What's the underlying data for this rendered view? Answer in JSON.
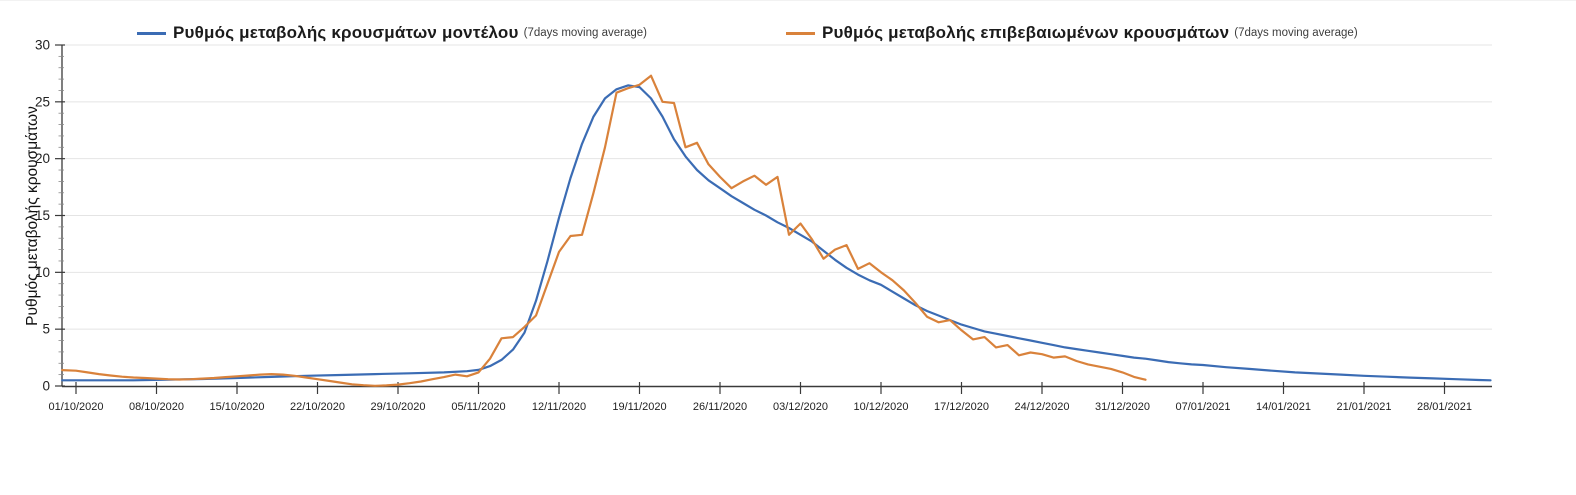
{
  "colors": {
    "model_line": "#3b6cb4",
    "confirmed_line": "#d9823b",
    "grid": "#e4e4e4",
    "axis": "#3a3a3a",
    "tick_label": "#1f1f1f"
  },
  "legend": {
    "entries": [
      {
        "label": "Ρυθμός μεταβολής κρουσμάτων μοντέλου",
        "sub": "(7days moving average)",
        "color": "#3b6cb4"
      },
      {
        "label": "Ρυθμός μεταβολής επιβεβαιωμένων κρουσμάτων",
        "sub": "(7days moving average)",
        "color": "#d9823b"
      }
    ]
  },
  "chart_data": {
    "type": "line",
    "title": "",
    "xlabel": "",
    "ylabel": "Ρυθμός μεταβολής κρουσμάτων",
    "ylim": [
      0,
      30
    ],
    "yticks": [
      0,
      5,
      10,
      15,
      20,
      25,
      30
    ],
    "y_minor_step": 1,
    "grid": true,
    "legend_position": "top",
    "x_tick_labels": [
      "01/10/2020",
      "08/10/2020",
      "15/10/2020",
      "22/10/2020",
      "29/10/2020",
      "05/11/2020",
      "12/11/2020",
      "19/11/2020",
      "26/11/2020",
      "03/12/2020",
      "10/12/2020",
      "17/12/2020",
      "24/12/2020",
      "31/12/2020",
      "07/01/2021",
      "14/01/2021",
      "21/01/2021",
      "28/01/2021"
    ],
    "x_tick_days": [
      0,
      7,
      14,
      21,
      28,
      35,
      42,
      49,
      56,
      63,
      70,
      77,
      84,
      91,
      98,
      105,
      112,
      119
    ],
    "x_domain_days": [
      -1.2,
      123
    ],
    "series": [
      {
        "name": "Ρυθμός μεταβολής κρουσμάτων μοντέλου (7days moving average)",
        "color": "#3b6cb4",
        "points": [
          [
            -1.2,
            0.5
          ],
          [
            2,
            0.5
          ],
          [
            5,
            0.5
          ],
          [
            8,
            0.55
          ],
          [
            11,
            0.62
          ],
          [
            14,
            0.7
          ],
          [
            17,
            0.8
          ],
          [
            20,
            0.9
          ],
          [
            23,
            0.97
          ],
          [
            26,
            1.05
          ],
          [
            29,
            1.12
          ],
          [
            32,
            1.2
          ],
          [
            34,
            1.3
          ],
          [
            35,
            1.42
          ],
          [
            36,
            1.75
          ],
          [
            37,
            2.3
          ],
          [
            38,
            3.2
          ],
          [
            39,
            4.7
          ],
          [
            40,
            7.5
          ],
          [
            41,
            11.0
          ],
          [
            42,
            14.8
          ],
          [
            43,
            18.3
          ],
          [
            44,
            21.3
          ],
          [
            45,
            23.7
          ],
          [
            46,
            25.3
          ],
          [
            47,
            26.1
          ],
          [
            48,
            26.45
          ],
          [
            49,
            26.3
          ],
          [
            50,
            25.3
          ],
          [
            51,
            23.7
          ],
          [
            52,
            21.7
          ],
          [
            53,
            20.2
          ],
          [
            54,
            19.0
          ],
          [
            55,
            18.1
          ],
          [
            56,
            17.4
          ],
          [
            57,
            16.7
          ],
          [
            58,
            16.1
          ],
          [
            59,
            15.5
          ],
          [
            60,
            15.0
          ],
          [
            61,
            14.4
          ],
          [
            62,
            13.9
          ],
          [
            63,
            13.3
          ],
          [
            64,
            12.7
          ],
          [
            65,
            11.9
          ],
          [
            66,
            11.1
          ],
          [
            67,
            10.4
          ],
          [
            68,
            9.8
          ],
          [
            69,
            9.3
          ],
          [
            70,
            8.9
          ],
          [
            71,
            8.3
          ],
          [
            72,
            7.7
          ],
          [
            73,
            7.1
          ],
          [
            74,
            6.6
          ],
          [
            75,
            6.2
          ],
          [
            76,
            5.8
          ],
          [
            77,
            5.4
          ],
          [
            78,
            5.1
          ],
          [
            79,
            4.8
          ],
          [
            80,
            4.6
          ],
          [
            81,
            4.4
          ],
          [
            82,
            4.2
          ],
          [
            83,
            4.0
          ],
          [
            84,
            3.8
          ],
          [
            85,
            3.6
          ],
          [
            86,
            3.4
          ],
          [
            87,
            3.25
          ],
          [
            88,
            3.1
          ],
          [
            89,
            2.95
          ],
          [
            90,
            2.8
          ],
          [
            91,
            2.65
          ],
          [
            92,
            2.5
          ],
          [
            93,
            2.4
          ],
          [
            94,
            2.25
          ],
          [
            95,
            2.1
          ],
          [
            96,
            2.0
          ],
          [
            97,
            1.9
          ],
          [
            98,
            1.85
          ],
          [
            100,
            1.65
          ],
          [
            102,
            1.5
          ],
          [
            104,
            1.35
          ],
          [
            106,
            1.2
          ],
          [
            108,
            1.1
          ],
          [
            110,
            1.0
          ],
          [
            112,
            0.9
          ],
          [
            114,
            0.82
          ],
          [
            116,
            0.74
          ],
          [
            118,
            0.67
          ],
          [
            120,
            0.6
          ],
          [
            122,
            0.53
          ],
          [
            123,
            0.5
          ]
        ]
      },
      {
        "name": "Ρυθμός μεταβολής επιβεβαιωμένων κρουσμάτων (7days moving average)",
        "color": "#d9823b",
        "points": [
          [
            -1.2,
            1.4
          ],
          [
            0,
            1.35
          ],
          [
            1,
            1.2
          ],
          [
            2,
            1.05
          ],
          [
            3,
            0.92
          ],
          [
            4,
            0.82
          ],
          [
            5,
            0.75
          ],
          [
            6,
            0.7
          ],
          [
            7,
            0.65
          ],
          [
            8,
            0.6
          ],
          [
            9,
            0.57
          ],
          [
            10,
            0.6
          ],
          [
            11,
            0.65
          ],
          [
            12,
            0.7
          ],
          [
            13,
            0.78
          ],
          [
            14,
            0.85
          ],
          [
            15,
            0.92
          ],
          [
            16,
            1.0
          ],
          [
            17,
            1.05
          ],
          [
            18,
            1.0
          ],
          [
            19,
            0.9
          ],
          [
            20,
            0.75
          ],
          [
            21,
            0.6
          ],
          [
            22,
            0.45
          ],
          [
            23,
            0.3
          ],
          [
            24,
            0.15
          ],
          [
            25,
            0.07
          ],
          [
            26,
            0.02
          ],
          [
            27,
            0.05
          ],
          [
            28,
            0.12
          ],
          [
            29,
            0.25
          ],
          [
            30,
            0.4
          ],
          [
            31,
            0.6
          ],
          [
            32,
            0.78
          ],
          [
            33,
            1.0
          ],
          [
            34,
            0.85
          ],
          [
            35,
            1.2
          ],
          [
            36,
            2.4
          ],
          [
            37,
            4.2
          ],
          [
            38,
            4.3
          ],
          [
            39,
            5.2
          ],
          [
            40,
            6.2
          ],
          [
            41,
            9.0
          ],
          [
            42,
            11.8
          ],
          [
            43,
            13.2
          ],
          [
            44,
            13.3
          ],
          [
            45,
            17.0
          ],
          [
            46,
            21.0
          ],
          [
            47,
            25.8
          ],
          [
            48,
            26.2
          ],
          [
            49,
            26.5
          ],
          [
            50,
            27.3
          ],
          [
            51,
            25.0
          ],
          [
            52,
            24.9
          ],
          [
            53,
            21.0
          ],
          [
            54,
            21.4
          ],
          [
            55,
            19.5
          ],
          [
            56,
            18.4
          ],
          [
            57,
            17.4
          ],
          [
            58,
            18.0
          ],
          [
            59,
            18.5
          ],
          [
            60,
            17.7
          ],
          [
            61,
            18.4
          ],
          [
            62,
            13.3
          ],
          [
            63,
            14.3
          ],
          [
            64,
            12.9
          ],
          [
            65,
            11.2
          ],
          [
            66,
            12.0
          ],
          [
            67,
            12.4
          ],
          [
            68,
            10.3
          ],
          [
            69,
            10.8
          ],
          [
            70,
            10.0
          ],
          [
            71,
            9.3
          ],
          [
            72,
            8.4
          ],
          [
            73,
            7.3
          ],
          [
            74,
            6.1
          ],
          [
            75,
            5.6
          ],
          [
            76,
            5.8
          ],
          [
            77,
            4.9
          ],
          [
            78,
            4.1
          ],
          [
            79,
            4.3
          ],
          [
            80,
            3.4
          ],
          [
            81,
            3.6
          ],
          [
            82,
            2.7
          ],
          [
            83,
            2.95
          ],
          [
            84,
            2.8
          ],
          [
            85,
            2.5
          ],
          [
            86,
            2.6
          ],
          [
            87,
            2.2
          ],
          [
            88,
            1.9
          ],
          [
            89,
            1.7
          ],
          [
            90,
            1.5
          ],
          [
            91,
            1.2
          ],
          [
            92,
            0.8
          ],
          [
            93,
            0.55
          ]
        ]
      }
    ]
  }
}
